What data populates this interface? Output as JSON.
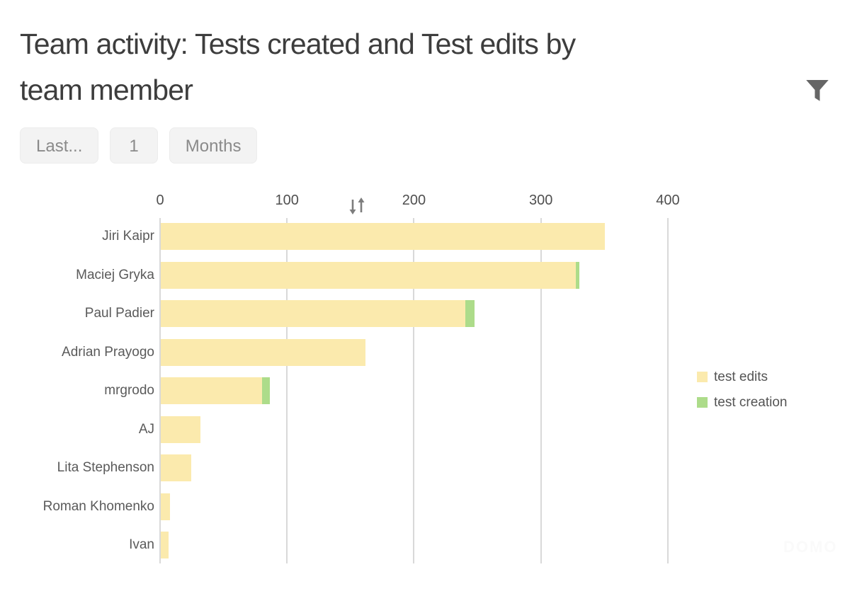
{
  "header": {
    "title": "Team activity: Tests created and Test edits by\nteam member"
  },
  "filters": [
    {
      "label": "Last..."
    },
    {
      "label": "1"
    },
    {
      "label": "Months"
    }
  ],
  "watermark": "DOMO",
  "colors": {
    "test_edits": "#FBEAAD",
    "test_creation": "#ADDC8A",
    "gridline": "#d9d9d9"
  },
  "chart_data": {
    "type": "bar",
    "orientation": "horizontal",
    "stacked": true,
    "title": "Team activity: Tests created and Test edits by team member",
    "categories": [
      "Jiri Kaipr",
      "Maciej Gryka",
      "Paul Padier",
      "Adrian Prayogo",
      "mrgrodo",
      "AJ",
      "Lita Stephenson",
      "Roman Khomenko",
      "Ivan"
    ],
    "series": [
      {
        "name": "test edits",
        "color": "#FBEAAD",
        "values": [
          350,
          327,
          240,
          161,
          80,
          31,
          24,
          7,
          6
        ]
      },
      {
        "name": "test creation",
        "color": "#ADDC8A",
        "values": [
          0,
          3,
          7,
          0,
          6,
          0,
          0,
          0,
          0
        ]
      }
    ],
    "x_ticks": [
      0,
      100,
      200,
      300,
      400
    ],
    "xlim": [
      0,
      400
    ],
    "grid": true,
    "legend_position": "right"
  }
}
